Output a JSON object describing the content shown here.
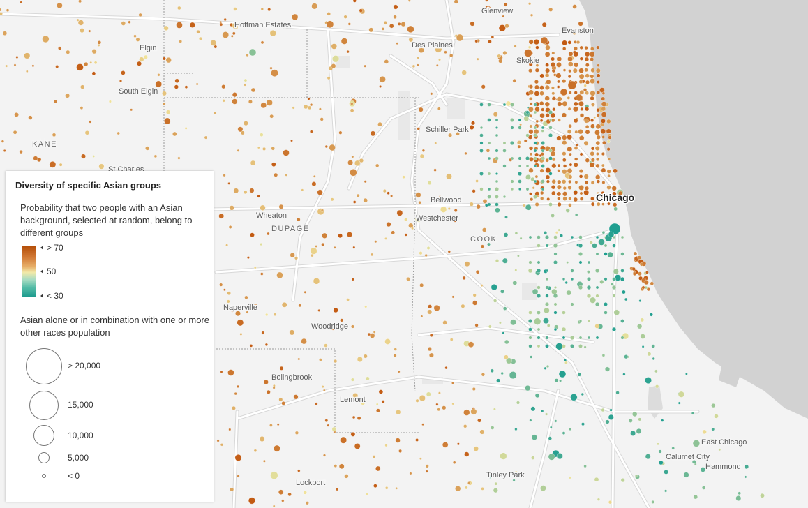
{
  "map": {
    "colors": {
      "land": "#f3f3f3",
      "water": "#d0d0d0",
      "road": "#ffffff",
      "road_casing": "#d9d9d9",
      "boundary": "#9a9a9a",
      "high": "#c25a12",
      "mid": "#f0e39c",
      "low": "#1f9e90"
    },
    "places": [
      {
        "name": "Glenview",
        "label": "Glenview"
      },
      {
        "name": "Evanston",
        "label": "Evanston"
      },
      {
        "name": "Hoffman Estates",
        "label": "Hoffman Estates"
      },
      {
        "name": "Elgin",
        "label": "Elgin"
      },
      {
        "name": "Des Plaines",
        "label": "Des Plaines"
      },
      {
        "name": "Skokie",
        "label": "Skokie"
      },
      {
        "name": "South Elgin",
        "label": "South Elgin"
      },
      {
        "name": "Schiller Park",
        "label": "Schiller Park"
      },
      {
        "name": "St Charles",
        "label": "St Charles"
      },
      {
        "name": "Bellwood",
        "label": "Bellwood"
      },
      {
        "name": "Chicago",
        "label": "Chicago"
      },
      {
        "name": "Wheaton",
        "label": "Wheaton"
      },
      {
        "name": "Westchester",
        "label": "Westchester"
      },
      {
        "name": "Naperville",
        "label": "Naperville"
      },
      {
        "name": "Woodridge",
        "label": "Woodridge"
      },
      {
        "name": "Bolingbrook",
        "label": "Bolingbrook"
      },
      {
        "name": "Lemont",
        "label": "Lemont"
      },
      {
        "name": "East Chicago",
        "label": "East Chicago"
      },
      {
        "name": "Calumet City",
        "label": "Calumet City"
      },
      {
        "name": "Hammond",
        "label": "Hammond"
      },
      {
        "name": "Tinley Park",
        "label": "Tinley Park"
      },
      {
        "name": "Lockport",
        "label": "Lockport"
      }
    ],
    "counties": [
      {
        "name": "Kane",
        "label": "KANE"
      },
      {
        "name": "DuPage",
        "label": "DUPAGE"
      },
      {
        "name": "Cook",
        "label": "COOK"
      }
    ]
  },
  "legend": {
    "title": "Diversity of specific Asian groups",
    "color_description": "Probability that two people with an Asian background, selected at random, belong to different groups",
    "color_stops": [
      "> 70",
      "50",
      "< 30"
    ],
    "size_description": "Asian alone or in combination with one or more other races population",
    "size_stops": [
      "> 20,000",
      "15,000",
      "10,000",
      "5,000",
      "< 0"
    ]
  }
}
